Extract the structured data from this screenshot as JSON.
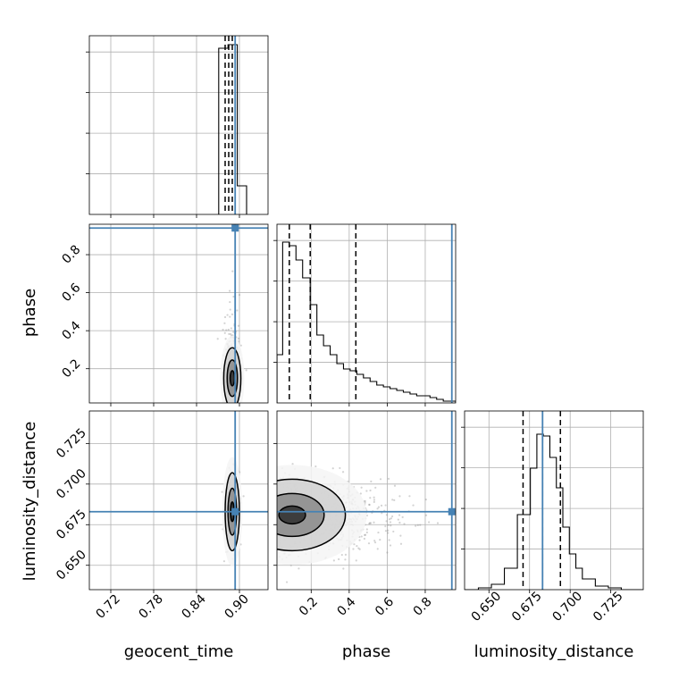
{
  "chart_data": {
    "type": "corner",
    "parameters": [
      "geocent_time",
      "phase",
      "luminosity_distance"
    ],
    "truths": {
      "geocent_time": 0.894,
      "phase": 0.94,
      "luminosity_distance": 0.683
    },
    "colors": {
      "truth": "#4682b4",
      "hist": "#000000",
      "grid": "#b0b0b0",
      "scatter": "#808080"
    },
    "quantile_lines": {
      "geocent_time": [
        0.88,
        0.885,
        0.89
      ],
      "phase": [
        0.085,
        0.195,
        0.435
      ],
      "luminosity_distance": [
        0.671,
        0.683,
        0.694
      ]
    },
    "axes": {
      "geocent_time": {
        "range": [
          0.69,
          0.94
        ],
        "ticks": [
          0.72,
          0.78,
          0.84,
          0.9
        ],
        "tick_labels": [
          "0.72",
          "0.78",
          "0.84",
          "0.90"
        ]
      },
      "phase": {
        "range": [
          0.02,
          0.96
        ],
        "ticks_x": [
          0.2,
          0.4,
          0.6,
          0.8
        ],
        "tick_labels_x": [
          "0.2",
          "0.4",
          "0.6",
          "0.8"
        ],
        "ticks_y": [
          0.2,
          0.4,
          0.6,
          0.8
        ],
        "tick_labels_y": [
          "0.2",
          "0.4",
          "0.6",
          "0.8"
        ]
      },
      "luminosity_distance": {
        "range": [
          0.635,
          0.745
        ],
        "ticks": [
          0.65,
          0.675,
          0.7,
          0.725
        ],
        "tick_labels": [
          "0.650",
          "0.675",
          "0.700",
          "0.725"
        ]
      }
    },
    "hist_geocent_time": {
      "bins": [
        [
          0.871,
          0.884,
          0.93
        ],
        [
          0.884,
          0.897,
          0.95
        ],
        [
          0.897,
          0.91,
          0.16
        ]
      ]
    },
    "hist_phase": {
      "bins": [
        [
          0.02,
          0.05,
          0.27
        ],
        [
          0.05,
          0.085,
          0.9
        ],
        [
          0.085,
          0.12,
          0.88
        ],
        [
          0.12,
          0.155,
          0.8
        ],
        [
          0.155,
          0.195,
          0.7
        ],
        [
          0.195,
          0.23,
          0.55
        ],
        [
          0.23,
          0.265,
          0.38
        ],
        [
          0.265,
          0.3,
          0.32
        ],
        [
          0.3,
          0.335,
          0.27
        ],
        [
          0.335,
          0.37,
          0.22
        ],
        [
          0.37,
          0.405,
          0.19
        ],
        [
          0.405,
          0.44,
          0.18
        ],
        [
          0.44,
          0.475,
          0.16
        ],
        [
          0.475,
          0.51,
          0.14
        ],
        [
          0.51,
          0.545,
          0.12
        ],
        [
          0.545,
          0.58,
          0.1
        ],
        [
          0.58,
          0.615,
          0.09
        ],
        [
          0.615,
          0.65,
          0.08
        ],
        [
          0.65,
          0.685,
          0.07
        ],
        [
          0.685,
          0.72,
          0.06
        ],
        [
          0.72,
          0.755,
          0.05
        ],
        [
          0.755,
          0.79,
          0.04
        ],
        [
          0.79,
          0.825,
          0.04
        ],
        [
          0.825,
          0.86,
          0.03
        ],
        [
          0.86,
          0.895,
          0.02
        ],
        [
          0.895,
          0.93,
          0.01
        ],
        [
          0.93,
          0.96,
          0.01
        ]
      ]
    },
    "hist_luminosity_distance": {
      "bins": [
        [
          0.635,
          0.6435,
          0.0
        ],
        [
          0.6435,
          0.6515,
          0.01
        ],
        [
          0.6515,
          0.6595,
          0.03
        ],
        [
          0.6595,
          0.6675,
          0.12
        ],
        [
          0.6675,
          0.6755,
          0.42
        ],
        [
          0.6755,
          0.6795,
          0.68
        ],
        [
          0.6795,
          0.6835,
          0.87
        ],
        [
          0.6835,
          0.6875,
          0.86
        ],
        [
          0.6875,
          0.6915,
          0.74
        ],
        [
          0.6915,
          0.6955,
          0.57
        ],
        [
          0.6955,
          0.6995,
          0.35
        ],
        [
          0.6995,
          0.7035,
          0.2
        ],
        [
          0.7035,
          0.7075,
          0.12
        ],
        [
          0.7075,
          0.7155,
          0.06
        ],
        [
          0.7155,
          0.7235,
          0.02
        ],
        [
          0.7235,
          0.7315,
          0.01
        ],
        [
          0.7315,
          0.745,
          0.0
        ]
      ]
    },
    "density_geocent_phase": {
      "center": [
        0.89,
        0.15
      ],
      "sd": [
        0.006,
        0.08
      ],
      "contour_radii_sd": [
        0.5,
        1.2,
        2.0,
        2.8
      ]
    },
    "density_geocent_distance": {
      "center": [
        0.89,
        0.683
      ],
      "sd": [
        0.005,
        0.012
      ],
      "contour_radii_sd": [
        0.5,
        1.2,
        2.0,
        2.8
      ]
    },
    "density_phase_distance": {
      "center": [
        0.1,
        0.681
      ],
      "sd": [
        0.14,
        0.011
      ],
      "contour_radii_sd": [
        0.5,
        1.2,
        2.0,
        2.8
      ]
    }
  }
}
